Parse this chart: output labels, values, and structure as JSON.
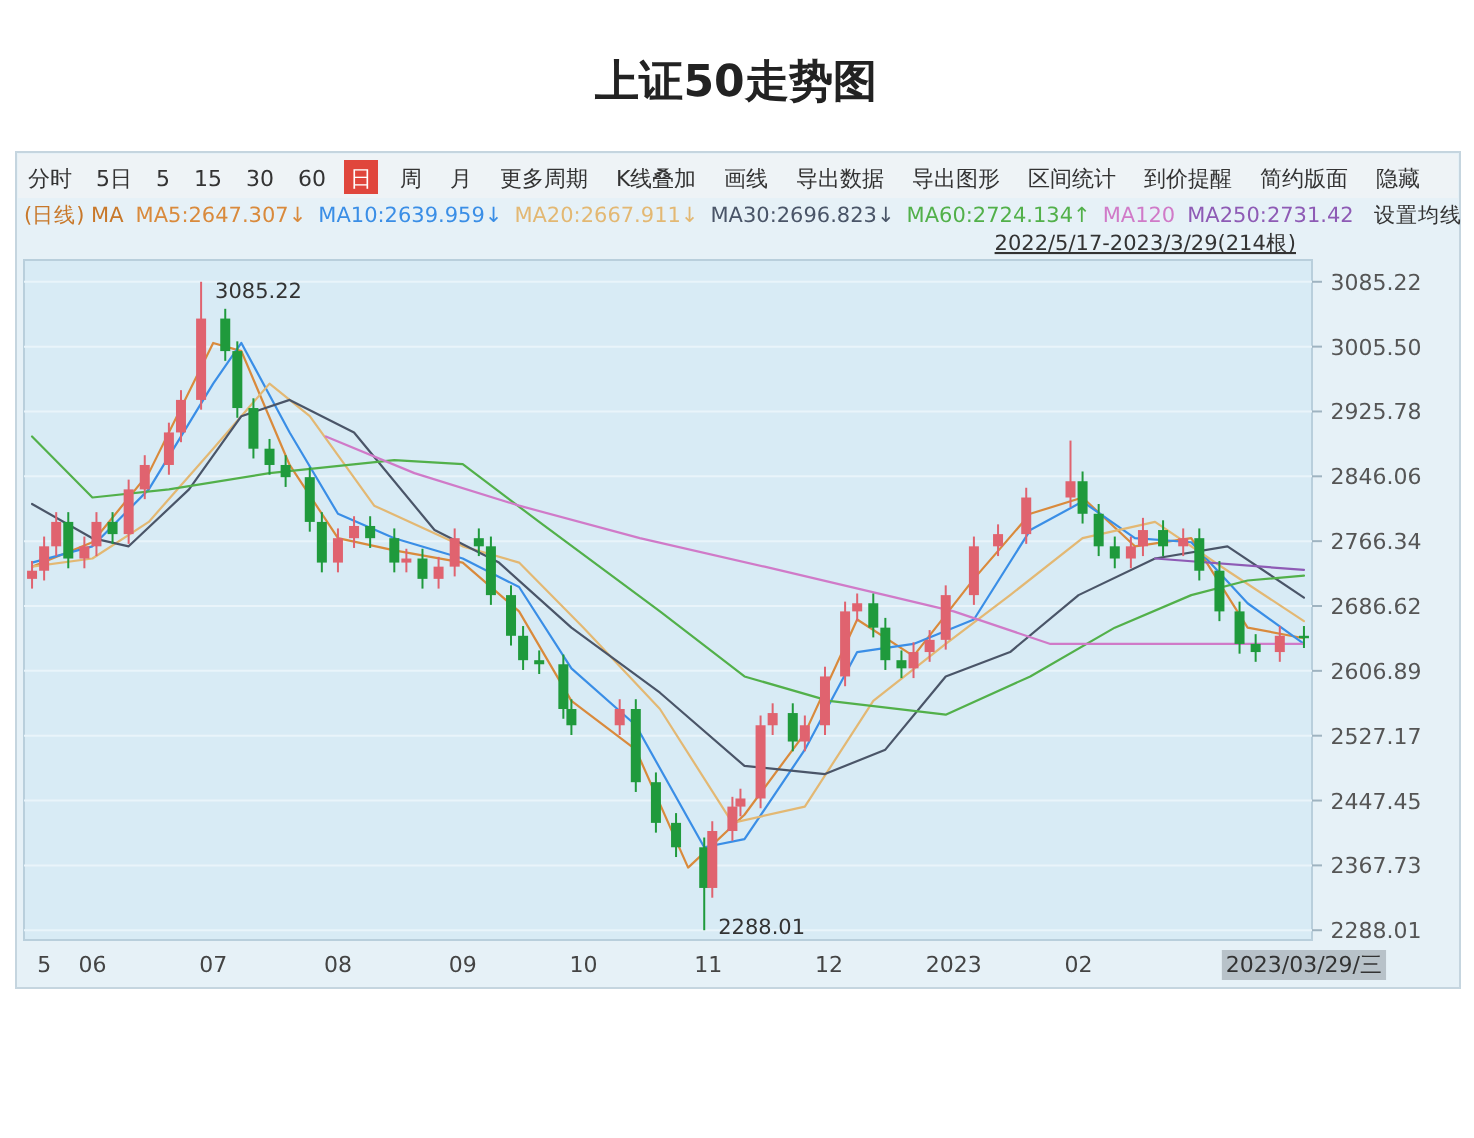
{
  "chart_data": {
    "type": "candlestick",
    "title": "上证50走势图",
    "legend_title": "(日线) MA",
    "legend": "top",
    "grid": "y",
    "annotations": [
      "分时",
      "5日",
      "5",
      "15",
      "30",
      "60",
      "日",
      "周",
      "月",
      "更多周期",
      "K线叠加",
      "画线",
      "导出数据",
      "导出图形",
      "区间统计",
      "到价提醒",
      "简约版面",
      "隐藏",
      "设置均线",
      "2022/5/17-2023/3/29(214根)",
      {
        "text": "3085.22",
        "x": "2022-06-28",
        "y": 3085.22
      },
      {
        "text": "2288.01",
        "x": "2022-10-31",
        "y": 2288.01
      }
    ],
    "xlim": [
      "2022-05-15",
      "2023-03-31"
    ],
    "xticks": [
      {
        "value": "2022-05-20",
        "label": "5"
      },
      {
        "value": "2022-06-01",
        "label": "06"
      },
      {
        "value": "2022-07-01",
        "label": "07"
      },
      {
        "value": "2022-08-01",
        "label": "08"
      },
      {
        "value": "2022-09-01",
        "label": "09"
      },
      {
        "value": "2022-10-01",
        "label": "10"
      },
      {
        "value": "2022-11-01",
        "label": "11"
      },
      {
        "value": "2022-12-01",
        "label": "12"
      },
      {
        "value": "2023-01-01",
        "label": "2023"
      },
      {
        "value": "2023-02-01",
        "label": "02"
      },
      {
        "value": "2023-03-29",
        "label": "2023/03/29/三"
      }
    ],
    "ylim": [
      2276,
      3112
    ],
    "yticks": [
      2288.01,
      2367.73,
      2447.45,
      2527.17,
      2606.89,
      2686.62,
      2766.34,
      2846.06,
      2925.78,
      {
        "value": 3005.5,
        "label": "3005.50"
      },
      3085.22
    ],
    "x": [
      "2022-05-17",
      "2022-05-20",
      "2022-05-23",
      "2022-05-26",
      "2022-05-30",
      "2022-06-02",
      "2022-06-06",
      "2022-06-10",
      "2022-06-14",
      "2022-06-20",
      "2022-06-23",
      "2022-06-28",
      "2022-07-04",
      "2022-07-07",
      "2022-07-11",
      "2022-07-15",
      "2022-07-19",
      "2022-07-25",
      "2022-07-28",
      "2022-08-01",
      "2022-08-05",
      "2022-08-09",
      "2022-08-15",
      "2022-08-18",
      "2022-08-22",
      "2022-08-26",
      "2022-08-30",
      "2022-09-05",
      "2022-09-08",
      "2022-09-13",
      "2022-09-16",
      "2022-09-20",
      "2022-09-26",
      "2022-09-28",
      "2022-10-10",
      "2022-10-14",
      "2022-10-19",
      "2022-10-24",
      "2022-10-31",
      "2022-11-02",
      "2022-11-07",
      "2022-11-09",
      "2022-11-14",
      "2022-11-17",
      "2022-11-22",
      "2022-11-25",
      "2022-11-30",
      "2022-12-05",
      "2022-12-08",
      "2022-12-12",
      "2022-12-15",
      "2022-12-19",
      "2022-12-22",
      "2022-12-26",
      "2022-12-30",
      "2023-01-06",
      "2023-01-12",
      "2023-01-19",
      "2023-01-30",
      "2023-02-02",
      "2023-02-06",
      "2023-02-10",
      "2023-02-14",
      "2023-02-17",
      "2023-02-22",
      "2023-02-27",
      "2023-03-03",
      "2023-03-08",
      "2023-03-13",
      "2023-03-17",
      "2023-03-23",
      "2023-03-29"
    ],
    "ohlc": [
      [
        2720,
        2742,
        2708,
        2730
      ],
      [
        2730,
        2772,
        2718,
        2760
      ],
      [
        2760,
        2802,
        2748,
        2790
      ],
      [
        2790,
        2802,
        2733,
        2745
      ],
      [
        2745,
        2772,
        2733,
        2760
      ],
      [
        2760,
        2802,
        2748,
        2790
      ],
      [
        2790,
        2802,
        2763,
        2775
      ],
      [
        2775,
        2842,
        2763,
        2830
      ],
      [
        2830,
        2872,
        2818,
        2860
      ],
      [
        2860,
        2912,
        2848,
        2900
      ],
      [
        2900,
        2952,
        2888,
        2940
      ],
      [
        2940,
        3085.22,
        2928,
        3040
      ],
      [
        3040,
        3052,
        2988,
        3000
      ],
      [
        3000,
        3012,
        2918,
        2930
      ],
      [
        2930,
        2942,
        2868,
        2880
      ],
      [
        2880,
        2892,
        2848,
        2860
      ],
      [
        2860,
        2872,
        2833,
        2845
      ],
      [
        2845,
        2857,
        2778,
        2790
      ],
      [
        2790,
        2802,
        2728,
        2740
      ],
      [
        2740,
        2782,
        2728,
        2770
      ],
      [
        2770,
        2797,
        2758,
        2785
      ],
      [
        2785,
        2797,
        2758,
        2770
      ],
      [
        2770,
        2782,
        2728,
        2740
      ],
      [
        2740,
        2757,
        2728,
        2745
      ],
      [
        2745,
        2757,
        2708,
        2720
      ],
      [
        2720,
        2747,
        2708,
        2735
      ],
      [
        2735,
        2782,
        2723,
        2770
      ],
      [
        2770,
        2782,
        2748,
        2760
      ],
      [
        2760,
        2772,
        2688,
        2700
      ],
      [
        2700,
        2712,
        2638,
        2650
      ],
      [
        2650,
        2662,
        2608,
        2620
      ],
      [
        2620,
        2632,
        2603,
        2615
      ],
      [
        2615,
        2627,
        2548,
        2560
      ],
      [
        2560,
        2572,
        2528,
        2540
      ],
      [
        2540,
        2572,
        2528,
        2560
      ],
      [
        2560,
        2572,
        2458,
        2470
      ],
      [
        2470,
        2482,
        2408,
        2420
      ],
      [
        2420,
        2432,
        2378,
        2390
      ],
      [
        2390,
        2402,
        2288.01,
        2340
      ],
      [
        2340,
        2422,
        2328,
        2410
      ],
      [
        2410,
        2452,
        2398,
        2440
      ],
      [
        2440,
        2462,
        2428,
        2450
      ],
      [
        2450,
        2552,
        2438,
        2540
      ],
      [
        2540,
        2567,
        2528,
        2555
      ],
      [
        2555,
        2567,
        2508,
        2520
      ],
      [
        2520,
        2552,
        2508,
        2540
      ],
      [
        2540,
        2612,
        2528,
        2600
      ],
      [
        2600,
        2692,
        2588,
        2680
      ],
      [
        2680,
        2702,
        2668,
        2690
      ],
      [
        2690,
        2702,
        2648,
        2660
      ],
      [
        2660,
        2672,
        2608,
        2620
      ],
      [
        2620,
        2632,
        2598,
        2610
      ],
      [
        2610,
        2642,
        2598,
        2630
      ],
      [
        2630,
        2657,
        2618,
        2645
      ],
      [
        2645,
        2712,
        2633,
        2700
      ],
      [
        2700,
        2772,
        2688,
        2760
      ],
      [
        2760,
        2787,
        2748,
        2775
      ],
      [
        2775,
        2832,
        2763,
        2820
      ],
      [
        2820,
        2890,
        2808,
        2840
      ],
      [
        2840,
        2852,
        2788,
        2800
      ],
      [
        2800,
        2812,
        2748,
        2760
      ],
      [
        2760,
        2772,
        2733,
        2745
      ],
      [
        2745,
        2772,
        2733,
        2760
      ],
      [
        2760,
        2795,
        2748,
        2780
      ],
      [
        2780,
        2792,
        2748,
        2760
      ],
      [
        2760,
        2782,
        2748,
        2770
      ],
      [
        2770,
        2782,
        2718,
        2730
      ],
      [
        2730,
        2742,
        2668,
        2680
      ],
      [
        2680,
        2692,
        2628,
        2640
      ],
      [
        2640,
        2652,
        2618,
        2630
      ],
      [
        2630,
        2662,
        2618,
        2650
      ],
      [
        2650,
        2662,
        2635,
        2647
      ]
    ],
    "colors": [
      "#e0636f",
      "#e0636f",
      "#e0636f",
      "#1f9a3c",
      "#e0636f",
      "#e0636f",
      "#1f9a3c",
      "#e0636f",
      "#e0636f",
      "#e0636f",
      "#e0636f",
      "#e0636f",
      "#1f9a3c",
      "#1f9a3c",
      "#1f9a3c",
      "#1f9a3c",
      "#1f9a3c",
      "#1f9a3c",
      "#1f9a3c",
      "#e0636f",
      "#e0636f",
      "#1f9a3c",
      "#1f9a3c",
      "#e0636f",
      "#1f9a3c",
      "#e0636f",
      "#e0636f",
      "#1f9a3c",
      "#1f9a3c",
      "#1f9a3c",
      "#1f9a3c",
      "#1f9a3c",
      "#1f9a3c",
      "#1f9a3c",
      "#e0636f",
      "#1f9a3c",
      "#1f9a3c",
      "#1f9a3c",
      "#1f9a3c",
      "#e0636f",
      "#e0636f",
      "#e0636f",
      "#e0636f",
      "#e0636f",
      "#1f9a3c",
      "#e0636f",
      "#e0636f",
      "#e0636f",
      "#e0636f",
      "#1f9a3c",
      "#1f9a3c",
      "#1f9a3c",
      "#e0636f",
      "#e0636f",
      "#e0636f",
      "#e0636f",
      "#e0636f",
      "#e0636f",
      "#e0636f",
      "#1f9a3c",
      "#1f9a3c",
      "#1f9a3c",
      "#e0636f",
      "#e0636f",
      "#1f9a3c",
      "#e0636f",
      "#1f9a3c",
      "#1f9a3c",
      "#1f9a3c",
      "#1f9a3c",
      "#e0636f",
      "#1f9a3c"
    ],
    "series": [
      {
        "name": "MA5:2647.307↓",
        "type": "line",
        "color": "#d98a3c",
        "x": [
          "2022-05-17",
          "2022-06-01",
          "2022-06-15",
          "2022-07-01",
          "2022-07-08",
          "2022-07-20",
          "2022-08-01",
          "2022-08-15",
          "2022-09-01",
          "2022-09-15",
          "2022-09-28",
          "2022-10-14",
          "2022-10-27",
          "2022-11-10",
          "2022-11-25",
          "2022-12-08",
          "2022-12-22",
          "2023-01-06",
          "2023-01-20",
          "2023-02-02",
          "2023-02-15",
          "2023-03-01",
          "2023-03-15",
          "2023-03-29"
        ],
        "values": [
          2735,
          2765,
          2850,
          3010,
          3000,
          2860,
          2770,
          2755,
          2740,
          2680,
          2570,
          2510,
          2365,
          2430,
          2530,
          2670,
          2625,
          2720,
          2800,
          2820,
          2760,
          2770,
          2660,
          2647
        ]
      },
      {
        "name": "MA10:2639.959↓",
        "type": "line",
        "color": "#3a8ee6",
        "x": [
          "2022-05-17",
          "2022-06-01",
          "2022-06-15",
          "2022-07-01",
          "2022-07-08",
          "2022-07-20",
          "2022-08-01",
          "2022-08-15",
          "2022-09-01",
          "2022-09-15",
          "2022-09-28",
          "2022-10-14",
          "2022-10-31",
          "2022-11-10",
          "2022-11-25",
          "2022-12-08",
          "2022-12-22",
          "2023-01-06",
          "2023-01-20",
          "2023-02-02",
          "2023-02-15",
          "2023-03-01",
          "2023-03-15",
          "2023-03-29"
        ],
        "values": [
          2740,
          2760,
          2830,
          2960,
          3010,
          2900,
          2800,
          2770,
          2745,
          2710,
          2610,
          2540,
          2390,
          2400,
          2510,
          2630,
          2640,
          2670,
          2780,
          2815,
          2770,
          2765,
          2690,
          2640
        ]
      },
      {
        "name": "MA20:2667.911↓",
        "type": "line",
        "color": "#e3b873",
        "x": [
          "2022-05-17",
          "2022-06-01",
          "2022-06-15",
          "2022-07-01",
          "2022-07-15",
          "2022-07-25",
          "2022-08-10",
          "2022-09-01",
          "2022-09-15",
          "2022-10-01",
          "2022-10-20",
          "2022-11-07",
          "2022-11-25",
          "2022-12-12",
          "2022-12-30",
          "2023-01-15",
          "2023-02-02",
          "2023-02-20",
          "2023-03-10",
          "2023-03-29"
        ],
        "values": [
          2735,
          2745,
          2790,
          2880,
          2960,
          2920,
          2810,
          2760,
          2740,
          2660,
          2560,
          2420,
          2440,
          2570,
          2640,
          2700,
          2770,
          2790,
          2730,
          2668
        ]
      },
      {
        "name": "MA30:2696.823↓",
        "type": "line",
        "color": "#4a5568",
        "x": [
          "2022-05-17",
          "2022-06-01",
          "2022-06-10",
          "2022-06-25",
          "2022-07-08",
          "2022-07-20",
          "2022-08-05",
          "2022-08-25",
          "2022-09-10",
          "2022-09-28",
          "2022-10-20",
          "2022-11-10",
          "2022-11-30",
          "2022-12-15",
          "2022-12-30",
          "2023-01-15",
          "2023-02-01",
          "2023-02-20",
          "2023-03-10",
          "2023-03-29"
        ],
        "values": [
          2812,
          2770,
          2760,
          2830,
          2920,
          2940,
          2900,
          2780,
          2740,
          2660,
          2580,
          2490,
          2480,
          2510,
          2600,
          2630,
          2700,
          2745,
          2760,
          2697
        ]
      },
      {
        "name": "MA60:2724.134↑",
        "type": "line",
        "color": "#52b04a",
        "x": [
          "2022-05-17",
          "2022-06-01",
          "2022-06-20",
          "2022-07-15",
          "2022-08-15",
          "2022-09-01",
          "2022-09-20",
          "2022-10-20",
          "2022-11-10",
          "2022-12-01",
          "2022-12-30",
          "2023-01-20",
          "2023-02-10",
          "2023-03-01",
          "2023-03-15",
          "2023-03-29"
        ],
        "values": [
          2895,
          2820,
          2830,
          2850,
          2866,
          2861,
          2790,
          2680,
          2600,
          2570,
          2553,
          2600,
          2660,
          2700,
          2718,
          2724
        ]
      },
      {
        "name": "MA120",
        "type": "line",
        "color": "#d07ac8",
        "x": [
          "2022-07-29",
          "2022-08-20",
          "2022-09-15",
          "2022-10-15",
          "2022-11-15",
          "2022-12-15",
          "2023-01-01",
          "2023-01-25",
          "2023-03-29"
        ],
        "values": [
          2895,
          2850,
          2810,
          2770,
          2735,
          2700,
          2680,
          2640,
          2640
        ]
      },
      {
        "name": "MA250:2731.42",
        "type": "line",
        "color": "#8e5bb5",
        "x": [
          "2023-02-20",
          "2023-03-29"
        ],
        "values": [
          2745,
          2731
        ]
      }
    ]
  }
}
